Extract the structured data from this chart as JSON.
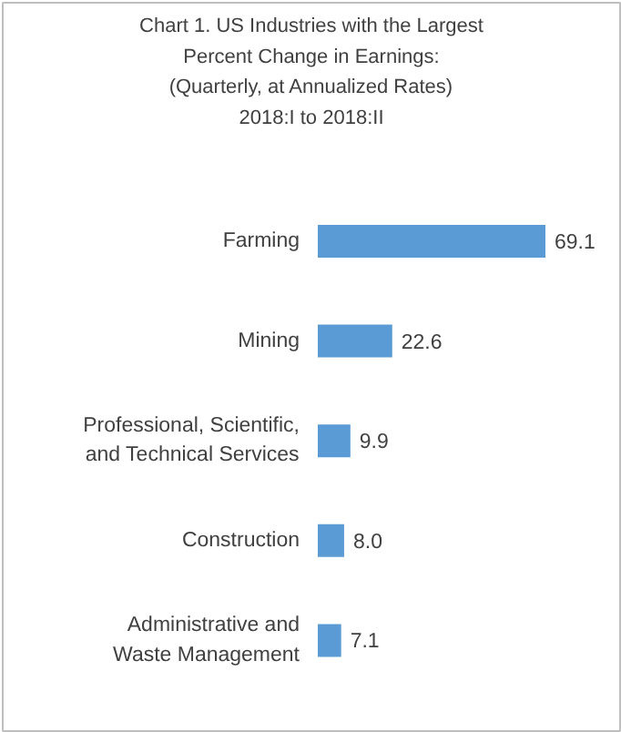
{
  "chart_data": {
    "type": "bar",
    "orientation": "horizontal",
    "title": "Chart 1. US Industries with the Largest\nPercent Change in Earnings:\n(Quarterly, at Annualized Rates)\n2018:I to 2018:II",
    "categories": [
      "Farming",
      "Mining",
      "Professional, Scientific,\nand Technical Services",
      "Construction",
      "Administrative and\nWaste Management"
    ],
    "values": [
      69.1,
      22.6,
      9.9,
      8.0,
      7.1
    ],
    "color": "#5b9bd5",
    "value_labels": [
      "69.1",
      "22.6",
      "9.9",
      "8.0",
      "7.1"
    ]
  }
}
